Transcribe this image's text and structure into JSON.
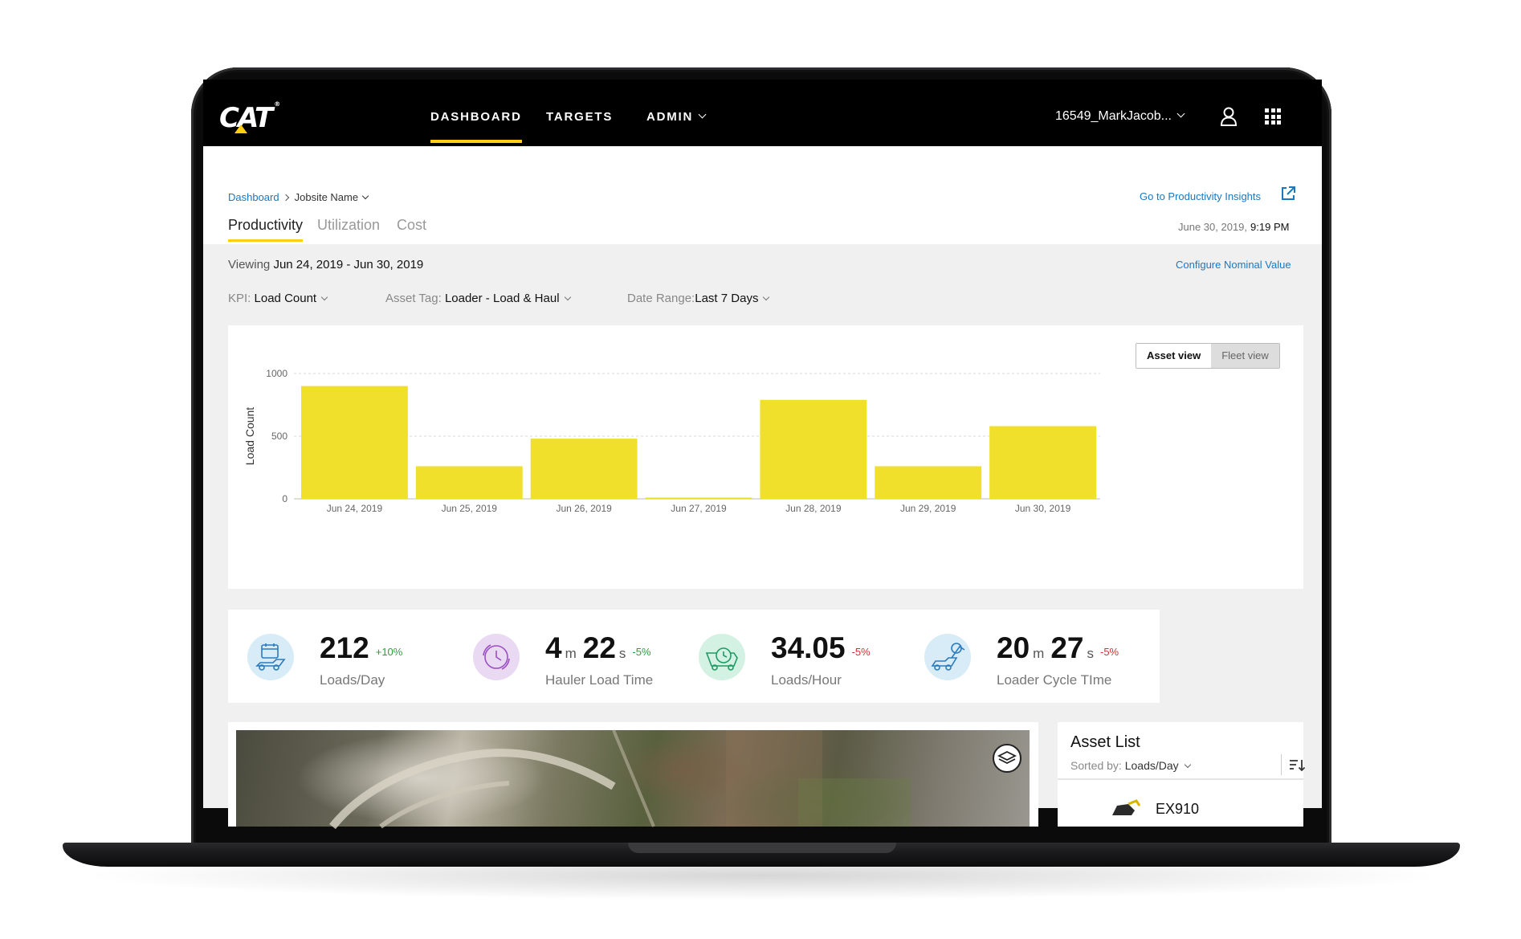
{
  "brand": {
    "logo_text": "CAT",
    "accent": "#ffcd11"
  },
  "nav": {
    "items": [
      {
        "label": "DASHBOARD",
        "active": true
      },
      {
        "label": "TARGETS",
        "active": false
      },
      {
        "label": "ADMIN",
        "active": false,
        "dropdown": true
      }
    ],
    "user": "16549_MarkJacob...",
    "icons": [
      "chevron-down-icon",
      "user-icon",
      "apps-grid-icon"
    ]
  },
  "breadcrumb": {
    "root": "Dashboard",
    "current": "Jobsite Name"
  },
  "insights_link": "Go to Productivity Insights",
  "tabs": [
    {
      "label": "Productivity",
      "active": true
    },
    {
      "label": "Utilization",
      "active": false
    },
    {
      "label": "Cost",
      "active": false
    }
  ],
  "datetime": {
    "date": "June 30, 2019,",
    "time": "9:19 PM"
  },
  "viewing": {
    "prefix": "Viewing",
    "range": "Jun 24, 2019 - Jun 30, 2019"
  },
  "configure_link": "Configure Nominal Value",
  "filters": {
    "kpi": {
      "label": "KPI:",
      "value": "Load Count"
    },
    "asset_tag": {
      "label": "Asset Tag:",
      "value": "Loader - Load & Haul"
    },
    "date_range": {
      "label": "Date Range:",
      "value": "Last 7 Days"
    }
  },
  "view_toggle": {
    "asset": "Asset view",
    "fleet": "Fleet view",
    "selected": "asset"
  },
  "chart_data": {
    "type": "bar",
    "categories": [
      "Jun 24, 2019",
      "Jun 25, 2019",
      "Jun 26, 2019",
      "Jun 27, 2019",
      "Jun 28, 2019",
      "Jun 29, 2019",
      "Jun 30, 2019"
    ],
    "values": [
      900,
      260,
      480,
      10,
      790,
      260,
      580
    ],
    "ylabel": "Load Count",
    "yticks": [
      0,
      500,
      1000
    ],
    "ylim": [
      0,
      1000
    ],
    "grid": true,
    "bar_color": "#f0df2b"
  },
  "kpis": [
    {
      "value": "212",
      "delta": "+10%",
      "trend": "up",
      "label": "Loads/Day",
      "icon": "loader-calendar-icon",
      "icon_bg": "#d8ecf7"
    },
    {
      "minutes": "4",
      "minutes_unit": "m",
      "seconds": "22",
      "seconds_unit": "s",
      "delta": "-5%",
      "trend": "up",
      "label": "Hauler Load Time",
      "icon": "hauler-clock-icon",
      "icon_bg": "#ead9f3"
    },
    {
      "value": "34.05",
      "delta": "-5%",
      "trend": "down",
      "label": "Loads/Hour",
      "icon": "truck-clock-icon",
      "icon_bg": "#d4f2e3"
    },
    {
      "minutes": "20",
      "minutes_unit": "m",
      "seconds": "27",
      "seconds_unit": "s",
      "delta": "-5%",
      "trend": "down",
      "label": "Loader Cycle TIme",
      "icon": "loader-cycle-icon",
      "icon_bg": "#d8ecf7"
    }
  ],
  "asset_list": {
    "title": "Asset List",
    "sorted_label": "Sorted by:",
    "sorted_value": "Loads/Day",
    "first_item": "EX910"
  }
}
